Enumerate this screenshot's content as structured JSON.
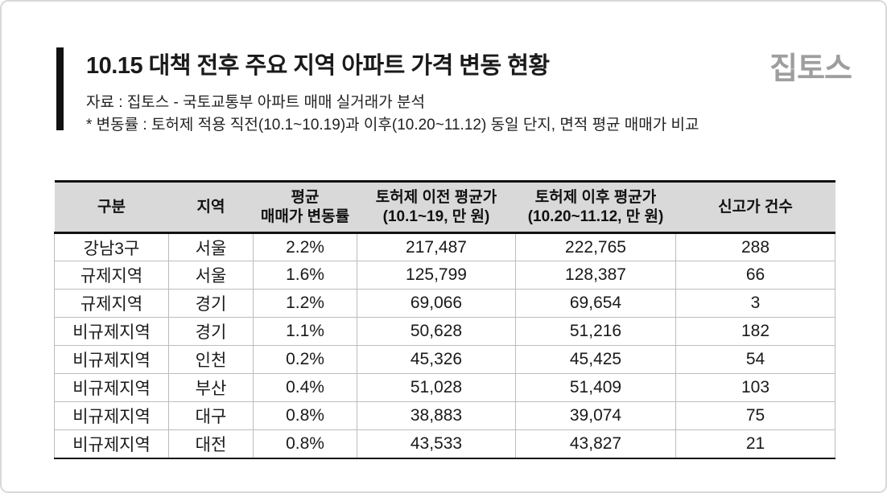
{
  "header": {
    "title": "10.15 대책 전후 주요 지역 아파트 가격 변동 현황",
    "logo": "집토스",
    "source_line": "자료 : 집토스 - 국토교통부 아파트 매매 실거래가 분석",
    "note_line": "* 변동률 : 토허제 적용 직전(10.1~10.19)과 이후(10.20~11.12) 동일 단지, 면적 평균 매매가 비교"
  },
  "table": {
    "columns": [
      "구분",
      "지역",
      "평균\n매매가 변동률",
      "토허제 이전 평균가\n(10.1~19, 만 원)",
      "토허제 이후 평균가\n(10.20~11.12, 만 원)",
      "신고가 건수"
    ],
    "rows": [
      [
        "강남3구",
        "서울",
        "2.2%",
        "217,487",
        "222,765",
        "288"
      ],
      [
        "규제지역",
        "서울",
        "1.6%",
        "125,799",
        "128,387",
        "66"
      ],
      [
        "규제지역",
        "경기",
        "1.2%",
        "69,066",
        "69,654",
        "3"
      ],
      [
        "비규제지역",
        "경기",
        "1.1%",
        "50,628",
        "51,216",
        "182"
      ],
      [
        "비규제지역",
        "인천",
        "0.2%",
        "45,326",
        "45,425",
        "54"
      ],
      [
        "비규제지역",
        "부산",
        "0.4%",
        "51,028",
        "51,409",
        "103"
      ],
      [
        "비규제지역",
        "대구",
        "0.8%",
        "38,883",
        "39,074",
        "75"
      ],
      [
        "비규제지역",
        "대전",
        "0.8%",
        "43,533",
        "43,827",
        "21"
      ]
    ]
  },
  "colors": {
    "header_bg": "#d9d9d9",
    "accent_bar": "#111111",
    "logo_gray": "#9e9e9e",
    "grid_line": "#bdbdbd",
    "heavy_line": "#111111"
  },
  "chart_data": {
    "type": "table",
    "title": "10.15 대책 전후 주요 지역 아파트 가격 변동 현황",
    "source": "자료 : 집토스 - 국토교통부 아파트 매매 실거래가 분석",
    "note": "* 변동률 : 토허제 적용 직전(10.1~10.19)과 이후(10.20~11.12) 동일 단지, 면적 평균 매매가 비교",
    "columns": [
      "구분",
      "지역",
      "평균 매매가 변동률",
      "토허제 이전 평균가 (10.1~19, 만 원)",
      "토허제 이후 평균가 (10.20~11.12, 만 원)",
      "신고가 건수"
    ],
    "rows": [
      {
        "구분": "강남3구",
        "지역": "서울",
        "변동률_pct": 2.2,
        "이전_평균가_만원": 217487,
        "이후_평균가_만원": 222765,
        "신고가_건수": 288
      },
      {
        "구분": "규제지역",
        "지역": "서울",
        "변동률_pct": 1.6,
        "이전_평균가_만원": 125799,
        "이후_평균가_만원": 128387,
        "신고가_건수": 66
      },
      {
        "구분": "규제지역",
        "지역": "경기",
        "변동률_pct": 1.2,
        "이전_평균가_만원": 69066,
        "이후_평균가_만원": 69654,
        "신고가_건수": 3
      },
      {
        "구분": "비규제지역",
        "지역": "경기",
        "변동률_pct": 1.1,
        "이전_평균가_만원": 50628,
        "이후_평균가_만원": 51216,
        "신고가_건수": 182
      },
      {
        "구분": "비규제지역",
        "지역": "인천",
        "변동률_pct": 0.2,
        "이전_평균가_만원": 45326,
        "이후_평균가_만원": 45425,
        "신고가_건수": 54
      },
      {
        "구분": "비규제지역",
        "지역": "부산",
        "변동률_pct": 0.4,
        "이전_평균가_만원": 51028,
        "이후_평균가_만원": 51409,
        "신고가_건수": 103
      },
      {
        "구분": "비규제지역",
        "지역": "대구",
        "변동률_pct": 0.8,
        "이전_평균가_만원": 38883,
        "이후_평균가_만원": 39074,
        "신고가_건수": 75
      },
      {
        "구분": "비규제지역",
        "지역": "대전",
        "변동률_pct": 0.8,
        "이전_평균가_만원": 43533,
        "이후_평균가_만원": 43827,
        "신고가_건수": 21
      }
    ]
  }
}
